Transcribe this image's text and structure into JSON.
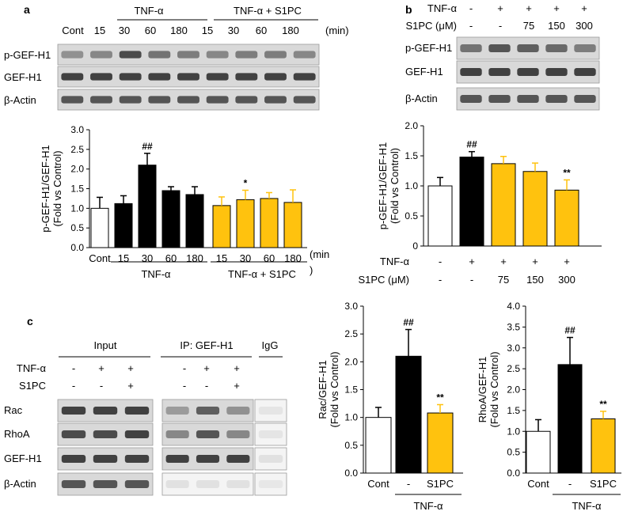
{
  "panels": {
    "a": {
      "letter": "a",
      "header": {
        "group1": "TNF-α",
        "group2": "TNF-α + S1PC",
        "unit": "(min)"
      },
      "columns": [
        "Cont",
        "15",
        "30",
        "60",
        "180",
        "15",
        "30",
        "60",
        "180"
      ],
      "blot_labels": [
        "p-GEF-H1",
        "GEF-H1",
        "β-Actin"
      ],
      "axis_group_labels": {
        "group1": "TNF-α",
        "group2": "TNF-α + S1PC",
        "unit": "(min",
        "unit_close": ")"
      }
    },
    "b": {
      "letter": "b",
      "rows": [
        {
          "label": "TNF-α",
          "values": [
            "-",
            "+",
            "+",
            "+",
            "+"
          ]
        },
        {
          "label": "S1PC (μM)",
          "values": [
            "-",
            "-",
            "75",
            "150",
            "300"
          ]
        }
      ],
      "blot_labels": [
        "p-GEF-H1",
        "GEF-H1",
        "β-Actin"
      ],
      "bottom_rows": [
        {
          "label": "TNF-α",
          "values": [
            "-",
            "+",
            "+",
            "+",
            "+"
          ]
        },
        {
          "label": "S1PC (μM)",
          "values": [
            "-",
            "-",
            "75",
            "150",
            "300"
          ]
        }
      ]
    },
    "c": {
      "letter": "c",
      "groups": {
        "input": "Input",
        "ip": "IP: GEF-H1",
        "igg": "IgG"
      },
      "rows": [
        {
          "label": "TNF-α",
          "values": [
            "-",
            "+",
            "+",
            "-",
            "+",
            "+"
          ]
        },
        {
          "label": "S1PC",
          "values": [
            "-",
            "-",
            "+",
            "-",
            "-",
            "+"
          ]
        }
      ],
      "blot_labels": [
        "Rac",
        "RhoA",
        "GEF-H1",
        "β-Actin"
      ]
    }
  },
  "colors": {
    "control": "#ffffff",
    "tnf": "#000000",
    "s1pc": "#ffc20e",
    "axis": "#000000"
  },
  "chart_data": [
    {
      "id": "a",
      "type": "bar",
      "ylabel": "p-GEF-H1/GEF-H1\n(Fold vs Control)",
      "ylim": [
        0,
        3.0
      ],
      "yticks": [
        "0.0",
        "0.5",
        "1.0",
        "1.5",
        "2.0",
        "2.5",
        "3.0"
      ],
      "categories": [
        "Cont",
        "15",
        "30",
        "60",
        "180",
        "15",
        "30",
        "60",
        "180"
      ],
      "values": [
        1.0,
        1.12,
        2.1,
        1.45,
        1.35,
        1.07,
        1.22,
        1.25,
        1.15
      ],
      "errors": [
        0.28,
        0.2,
        0.3,
        0.1,
        0.2,
        0.22,
        0.24,
        0.15,
        0.32
      ],
      "fills": [
        "control",
        "tnf",
        "tnf",
        "tnf",
        "tnf",
        "s1pc",
        "s1pc",
        "s1pc",
        "s1pc"
      ],
      "annotations": [
        "",
        "",
        "##",
        "",
        "",
        "",
        "*",
        "",
        ""
      ]
    },
    {
      "id": "b",
      "type": "bar",
      "ylabel": "p-GEF-H1/GEF-H1\n(Fold vs Control)",
      "ylim": [
        0,
        2.0
      ],
      "yticks": [
        "0",
        "0.5",
        "1.0",
        "1.5",
        "2.0"
      ],
      "categories": [
        "-",
        "+",
        "75",
        "150",
        "300"
      ],
      "values": [
        1.0,
        1.48,
        1.37,
        1.24,
        0.93
      ],
      "errors": [
        0.14,
        0.09,
        0.12,
        0.14,
        0.17
      ],
      "fills": [
        "control",
        "tnf",
        "s1pc",
        "s1pc",
        "s1pc"
      ],
      "annotations": [
        "",
        "##",
        "",
        "",
        "**"
      ]
    },
    {
      "id": "c1",
      "type": "bar",
      "ylabel": "Rac/GEF-H1\n(Fold vs Control)",
      "ylim": [
        0,
        3.0
      ],
      "yticks": [
        "0.0",
        "0.5",
        "1.0",
        "1.5",
        "2.0",
        "2.5",
        "3.0"
      ],
      "categories": [
        "Cont",
        "-",
        "S1PC"
      ],
      "group_label": "TNF-α",
      "values": [
        1.0,
        2.1,
        1.08
      ],
      "errors": [
        0.18,
        0.48,
        0.15
      ],
      "fills": [
        "control",
        "tnf",
        "s1pc"
      ],
      "annotations": [
        "",
        "##",
        "**"
      ]
    },
    {
      "id": "c2",
      "type": "bar",
      "ylabel": "RhoA/GEF-H1\n(Fold vs Control)",
      "ylim": [
        0,
        4.0
      ],
      "yticks": [
        "0.0",
        "0.5",
        "1.0",
        "1.5",
        "2.0",
        "2.5",
        "3.0",
        "3.5",
        "4.0"
      ],
      "categories": [
        "Cont",
        "-",
        "S1PC"
      ],
      "group_label": "TNF-α",
      "values": [
        1.0,
        2.6,
        1.3
      ],
      "errors": [
        0.28,
        0.65,
        0.18
      ],
      "fills": [
        "control",
        "tnf",
        "s1pc"
      ],
      "annotations": [
        "",
        "##",
        "**"
      ]
    }
  ]
}
